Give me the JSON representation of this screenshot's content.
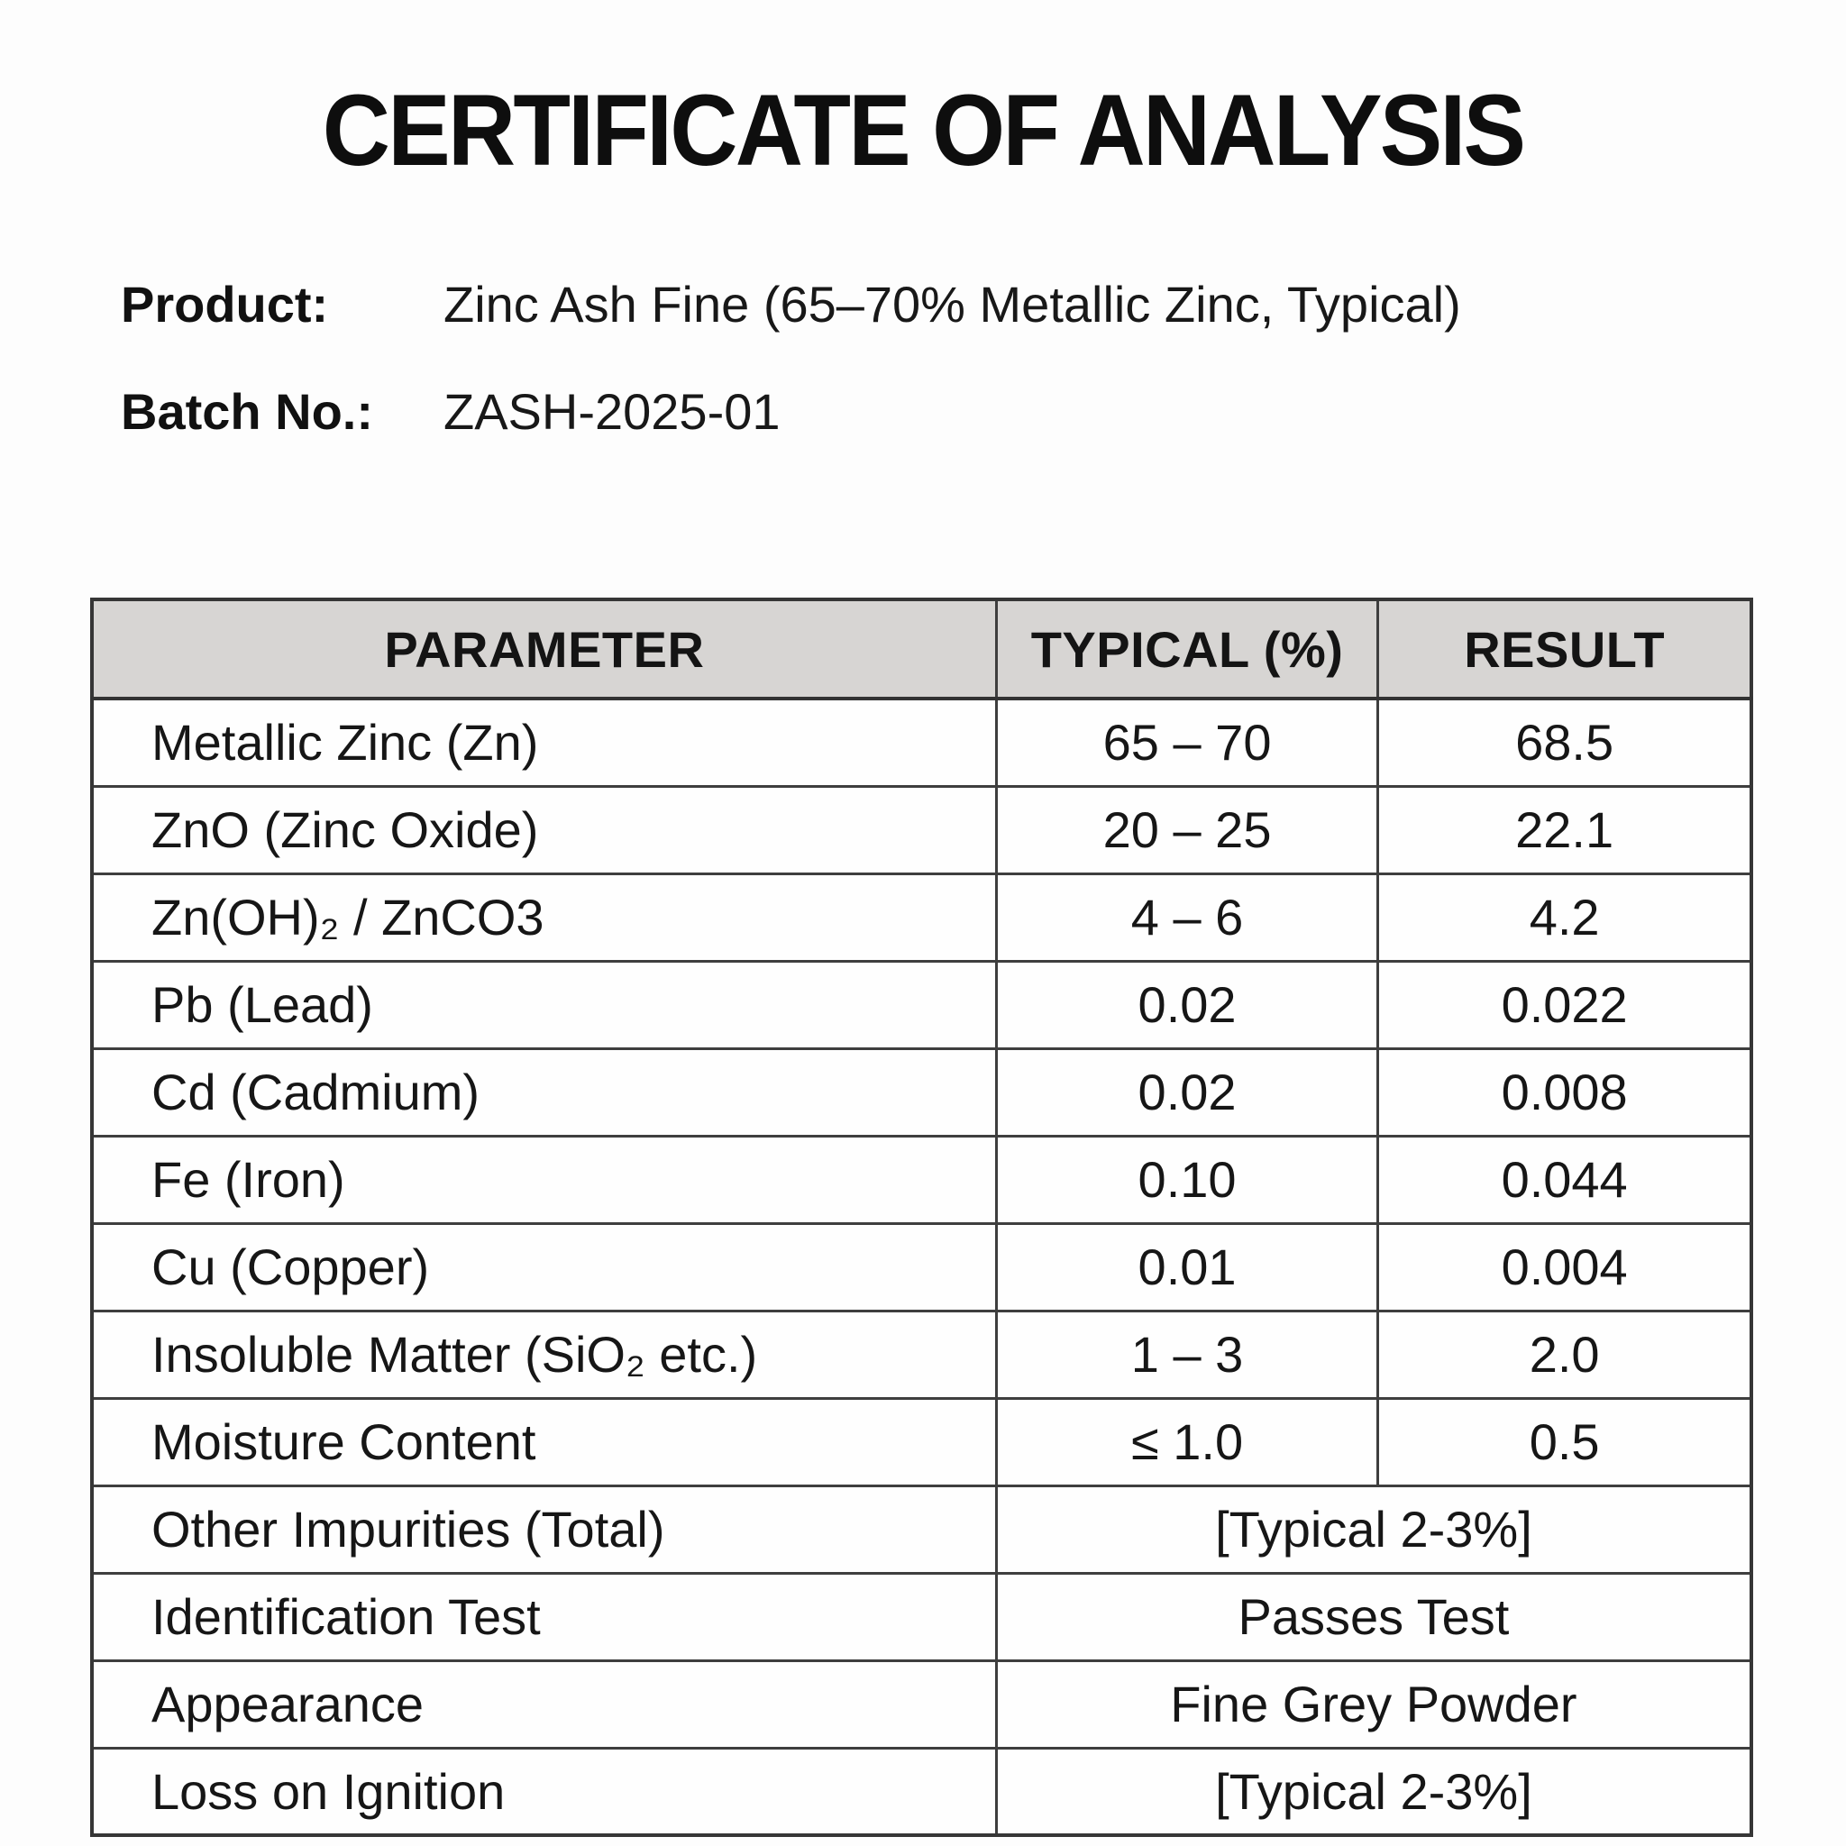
{
  "title": "CERTIFICATE OF ANALYSIS",
  "product": {
    "label": "Product:",
    "value": "Zinc Ash Fine (65–70% Metallic Zinc, Typical)"
  },
  "batch": {
    "label": "Batch No.:",
    "value": "ZASH-2025-01"
  },
  "table": {
    "headers": {
      "parameter": "PARAMETER",
      "typical": "TYPICAL (%)",
      "result": "RESULT"
    },
    "rows": [
      {
        "parameter": "Metallic Zinc (Zn)",
        "typical": "65 – 70",
        "result": "68.5"
      },
      {
        "parameter": "ZnO (Zinc Oxide)",
        "typical": "20 – 25",
        "result": "22.1"
      },
      {
        "parameter": "Zn(OH)₂ / ZnCO3",
        "typical": "4 – 6",
        "result": "4.2"
      },
      {
        "parameter": "Pb (Lead)",
        "typical": "0.02",
        "result": "0.022"
      },
      {
        "parameter": "Cd (Cadmium)",
        "typical": "0.02",
        "result": "0.008"
      },
      {
        "parameter": "Fe (Iron)",
        "typical": "0.10",
        "result": "0.044"
      },
      {
        "parameter": "Cu (Copper)",
        "typical": "0.01",
        "result": "0.004"
      },
      {
        "parameter": "Insoluble Matter (SiO₂ etc.)",
        "typical": "1 – 3",
        "result": "2.0"
      },
      {
        "parameter": "Moisture Content",
        "typical": "≤ 1.0",
        "result": "0.5"
      },
      {
        "parameter": "Other Impurities (Total)",
        "merged": "[Typical 2-3%]"
      },
      {
        "parameter": "Identification Test",
        "merged": "Passes Test"
      },
      {
        "parameter": "Appearance",
        "merged": "Fine Grey Powder"
      },
      {
        "parameter": "Loss on Ignition",
        "merged": "[Typical 2-3%]"
      }
    ]
  },
  "colors": {
    "header_bg": "#d7d5d3",
    "border": "#3e3e3e",
    "text": "#161616"
  }
}
